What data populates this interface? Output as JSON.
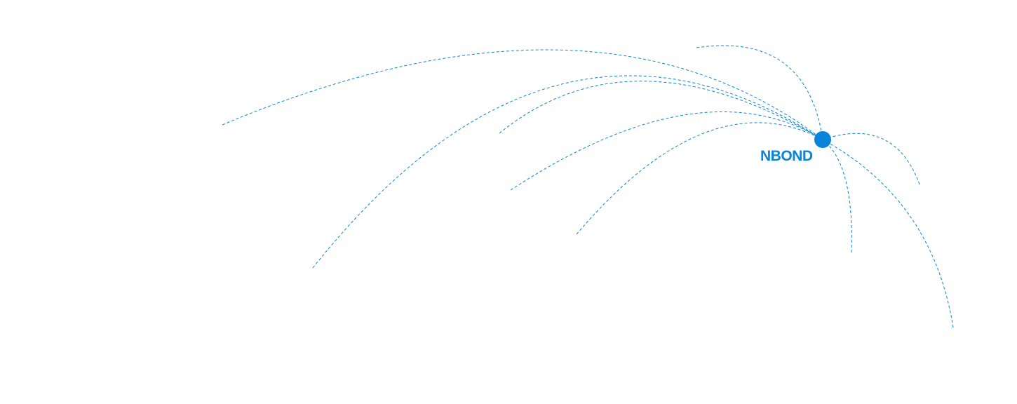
{
  "hub": {
    "label": "NBOND"
  },
  "colors": {
    "accent": "#0a84d8"
  }
}
